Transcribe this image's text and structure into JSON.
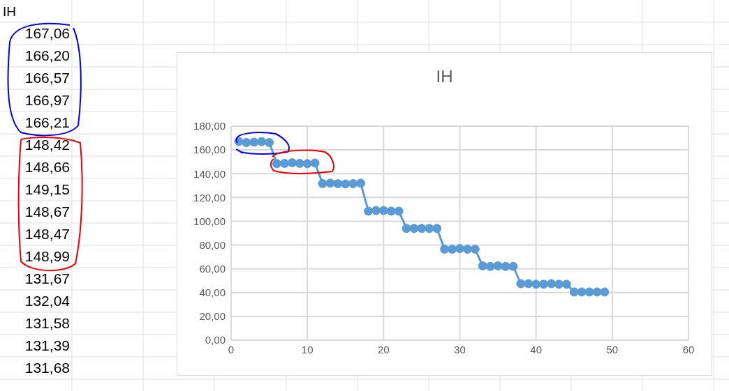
{
  "chart_data": [
    {
      "type": "other",
      "title": "IH",
      "annotations": [
        "167,06",
        "166,20",
        "166,57",
        "166,97",
        "166,21",
        "148,42",
        "148,66",
        "149,15",
        "148,67",
        "148,47",
        "148,99",
        "131,67",
        "132,04",
        "131,58",
        "131,39",
        "131,68"
      ]
    },
    {
      "type": "line",
      "title": "IH",
      "x": [
        1,
        2,
        3,
        4,
        5,
        6,
        7,
        8,
        9,
        10,
        11,
        12,
        13,
        14,
        15,
        16,
        17,
        18,
        19,
        20,
        21,
        22,
        23,
        24,
        25,
        26,
        27,
        28,
        29,
        30,
        31,
        32,
        33,
        34,
        35,
        36,
        37,
        38,
        39,
        40,
        41,
        42,
        43,
        44,
        45,
        46,
        47,
        48,
        49
      ],
      "series": [
        {
          "color": "#5b9bd5",
          "values": [
            167.06,
            166.2,
            166.57,
            166.97,
            166.21,
            148.42,
            148.66,
            149.15,
            148.67,
            148.47,
            148.99,
            131.67,
            132.04,
            131.58,
            131.39,
            131.68,
            132,
            108.5,
            109,
            109,
            108.5,
            108.5,
            94,
            94,
            94,
            94,
            94,
            76.5,
            76.5,
            77,
            76.5,
            76.5,
            62.5,
            62,
            62.5,
            62,
            62,
            47.5,
            47.5,
            47,
            47,
            47.5,
            47,
            47,
            40.5,
            40.5,
            40.5,
            40.5,
            40.5
          ]
        }
      ],
      "xlim": [
        0,
        60
      ],
      "xticks": [
        0,
        10,
        20,
        30,
        40,
        50,
        60
      ],
      "ylim": [
        0,
        180
      ],
      "yticks": [
        {
          "value": 0,
          "label": "0,00"
        },
        {
          "value": 20,
          "label": "20,00"
        },
        {
          "value": 40,
          "label": "40,00"
        },
        {
          "value": 60,
          "label": "60,00"
        },
        {
          "value": 80,
          "label": "80,00"
        },
        {
          "value": 100,
          "label": "100,00"
        },
        {
          "value": 120,
          "label": "120,00"
        },
        {
          "value": 140,
          "label": "140,00"
        },
        {
          "value": 160,
          "label": "160,00"
        },
        {
          "value": 180,
          "label": "180,00"
        }
      ],
      "grid": true,
      "marker": "circle",
      "line_style": "solid"
    }
  ]
}
